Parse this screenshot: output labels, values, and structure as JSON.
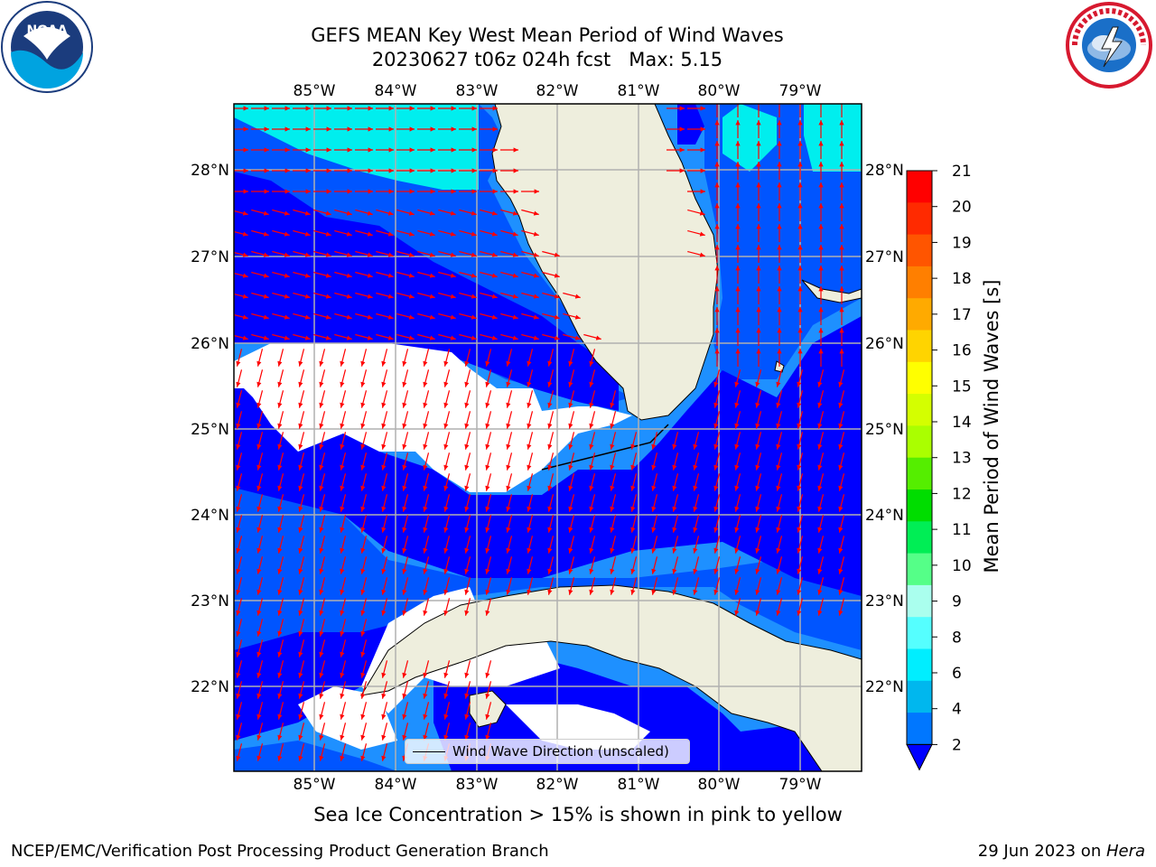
{
  "header": {
    "title_line1": "GEFS MEAN Key West Mean Period of Wind Waves",
    "title_line2": "20230627 t06z 024h fcst   Max: 5.15"
  },
  "logos": {
    "noaa": {
      "text": "NOAA",
      "icon": "noaa-logo-icon"
    },
    "nws": {
      "icon": "nws-logo-icon"
    }
  },
  "map": {
    "lon_ticks_top": [
      "85°W",
      "84°W",
      "83°W",
      "82°W",
      "81°W",
      "80°W",
      "79°W"
    ],
    "lon_ticks_bottom": [
      "85°W",
      "84°W",
      "83°W",
      "82°W",
      "81°W",
      "80°W",
      "79°W"
    ],
    "lat_ticks_left": [
      "28°N",
      "27°N",
      "26°N",
      "25°N",
      "24°N",
      "23°N",
      "22°N"
    ],
    "lat_ticks_right": [
      "28°N",
      "27°N",
      "26°N",
      "25°N",
      "24°N",
      "23°N",
      "22°N"
    ],
    "colors": {
      "land": "#eeeedd",
      "band_2_4": "#0055ff",
      "band_0_2": "#0000ff",
      "band_4_6": "#00eeee",
      "light_blue": "#1e90ff",
      "arrow": "#ff0000",
      "grid": "#b0b0b0"
    },
    "legend_label": "Wind Wave Direction (unscaled)"
  },
  "colorbar": {
    "label": "Mean Period of Wind Waves [s]",
    "ticks": [
      "21",
      "20",
      "19",
      "18",
      "17",
      "16",
      "15",
      "14",
      "13",
      "12",
      "11",
      "10",
      "9",
      "8",
      "6",
      "4",
      "2"
    ],
    "colors": [
      "#ff0000",
      "#ff2a00",
      "#ff5500",
      "#ff7f00",
      "#ffaa00",
      "#ffd400",
      "#ffff00",
      "#d4ff00",
      "#aaff00",
      "#55ee00",
      "#00dd00",
      "#00ee55",
      "#55ff88",
      "#aaffee",
      "#55ffff",
      "#00eeff",
      "#00b7ee",
      "#0077ff"
    ]
  },
  "footer": {
    "sea_ice_note": "Sea Ice Concentration > 15% is shown in pink to yellow",
    "org": "NCEP/EMC/Verification Post Processing Product Generation Branch",
    "date": "29 Jun 2023 on ",
    "host": "Hera"
  }
}
